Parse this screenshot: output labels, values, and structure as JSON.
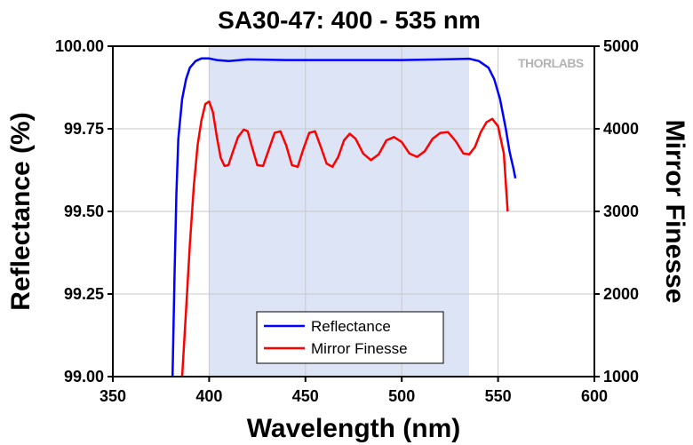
{
  "chart_data": {
    "type": "line",
    "title": "SA30-47: 400 - 535 nm",
    "xlabel": "Wavelength (nm)",
    "ylabel_left": "Reflectance (%)",
    "ylabel_right": "Mirror Finesse",
    "xlim": [
      350,
      600
    ],
    "ylim_left": [
      99.0,
      100.0
    ],
    "ylim_right": [
      1000,
      5000
    ],
    "x_ticks": [
      "350",
      "400",
      "450",
      "500",
      "550",
      "600"
    ],
    "y_ticks_left": [
      "99.00",
      "99.25",
      "99.50",
      "99.75",
      "100.00"
    ],
    "y_ticks_right": [
      "1000",
      "2000",
      "3000",
      "4000",
      "5000"
    ],
    "grid": true,
    "legend_position": "bottom-center",
    "highlight_band": [
      400,
      535
    ],
    "brand": "THORLABS",
    "series": [
      {
        "name": "Reflectance",
        "axis": "left",
        "color": "#0000ff",
        "x": [
          381,
          382,
          383,
          384,
          386,
          388,
          390,
          393,
          396,
          400,
          404,
          410,
          420,
          440,
          460,
          480,
          500,
          520,
          535,
          540,
          545,
          548,
          551,
          554,
          556,
          558,
          559
        ],
        "y": [
          99.0,
          99.3,
          99.55,
          99.72,
          99.84,
          99.9,
          99.935,
          99.955,
          99.963,
          99.963,
          99.958,
          99.955,
          99.96,
          99.958,
          99.958,
          99.958,
          99.958,
          99.96,
          99.962,
          99.955,
          99.935,
          99.9,
          99.84,
          99.75,
          99.68,
          99.63,
          99.6
        ]
      },
      {
        "name": "Mirror Finesse",
        "axis": "right",
        "color": "#ff0000",
        "x": [
          386,
          388,
          390,
          392,
          394,
          396,
          398,
          400,
          402,
          404,
          406,
          408,
          410,
          412,
          415,
          418,
          420,
          422,
          425,
          428,
          431,
          434,
          437,
          440,
          443,
          446,
          449,
          452,
          455,
          458,
          461,
          464,
          467,
          470,
          473,
          476,
          480,
          484,
          488,
          492,
          496,
          500,
          504,
          508,
          512,
          516,
          520,
          524,
          528,
          532,
          535,
          538,
          541,
          544,
          547,
          550,
          553,
          555
        ],
        "y": [
          1000,
          1800,
          2600,
          3300,
          3800,
          4100,
          4300,
          4330,
          4200,
          3900,
          3650,
          3550,
          3560,
          3700,
          3900,
          3990,
          3970,
          3800,
          3560,
          3550,
          3750,
          3950,
          3970,
          3800,
          3560,
          3540,
          3760,
          3950,
          3970,
          3780,
          3580,
          3540,
          3660,
          3860,
          3940,
          3880,
          3700,
          3620,
          3690,
          3860,
          3900,
          3840,
          3700,
          3660,
          3730,
          3880,
          3950,
          3960,
          3850,
          3700,
          3690,
          3780,
          3960,
          4080,
          4120,
          4030,
          3700,
          3000
        ]
      }
    ]
  }
}
